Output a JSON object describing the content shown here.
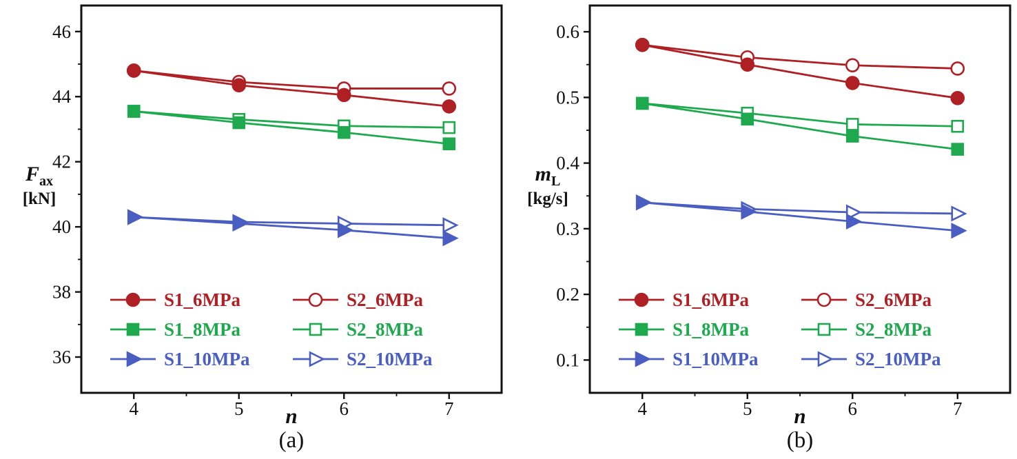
{
  "figure": {
    "background": "#ffffff",
    "axis_color": "#111111",
    "caption_a": "(a)",
    "caption_b": "(b)"
  },
  "chart_data": [
    {
      "type": "line",
      "caption": "(a)",
      "xlabel": "n",
      "ylabel": "F_ax [kN]",
      "ylabel_main": "F",
      "ylabel_sub": "ax",
      "ylabel_unit": "[kN]",
      "x": [
        4,
        5,
        6,
        7
      ],
      "xticks": [
        4,
        5,
        6,
        7
      ],
      "xtick_labels": [
        "4",
        "5",
        "6",
        "7"
      ],
      "yticks": [
        36,
        38,
        40,
        42,
        44,
        46
      ],
      "ytick_labels": [
        "36",
        "38",
        "40",
        "42",
        "44",
        "46"
      ],
      "xlim": [
        3.5,
        7.5
      ],
      "ylim": [
        34.9,
        46.8
      ],
      "grid": false,
      "legend_position": "inside-bottom-left",
      "series": [
        {
          "name": "S1_6MPa",
          "color": "#ae2024",
          "marker": "circle",
          "fill": "filled",
          "values": [
            44.8,
            44.35,
            44.05,
            43.7
          ]
        },
        {
          "name": "S2_6MPa",
          "color": "#ae2024",
          "marker": "circle",
          "fill": "open",
          "values": [
            44.8,
            44.45,
            44.25,
            44.25
          ]
        },
        {
          "name": "S1_8MPa",
          "color": "#1ea94e",
          "marker": "square",
          "fill": "filled",
          "values": [
            43.55,
            43.2,
            42.9,
            42.55
          ]
        },
        {
          "name": "S2_8MPa",
          "color": "#1ea94e",
          "marker": "square",
          "fill": "open",
          "values": [
            43.55,
            43.3,
            43.1,
            43.05
          ]
        },
        {
          "name": "S1_10MPa",
          "color": "#4a5dc0",
          "marker": "triangle-right",
          "fill": "filled",
          "values": [
            40.3,
            40.1,
            39.9,
            39.65
          ]
        },
        {
          "name": "S2_10MPa",
          "color": "#4a5dc0",
          "marker": "triangle-right",
          "fill": "open",
          "values": [
            40.3,
            40.15,
            40.1,
            40.05
          ]
        }
      ]
    },
    {
      "type": "line",
      "caption": "(b)",
      "xlabel": "n",
      "ylabel": "m_L [kg/s]",
      "ylabel_main": "m",
      "ylabel_sub": "L",
      "ylabel_unit": "[kg/s]",
      "x": [
        4,
        5,
        6,
        7
      ],
      "xticks": [
        4,
        5,
        6,
        7
      ],
      "xtick_labels": [
        "4",
        "5",
        "6",
        "7"
      ],
      "yticks": [
        0.1,
        0.2,
        0.3,
        0.4,
        0.5,
        0.6
      ],
      "ytick_labels": [
        "0.1",
        "0.2",
        "0.3",
        "0.4",
        "0.5",
        "0.6"
      ],
      "xlim": [
        3.5,
        7.5
      ],
      "ylim": [
        0.05,
        0.64
      ],
      "grid": false,
      "legend_position": "inside-bottom-left",
      "series": [
        {
          "name": "S1_6MPa",
          "color": "#ae2024",
          "marker": "circle",
          "fill": "filled",
          "values": [
            0.58,
            0.55,
            0.522,
            0.499
          ]
        },
        {
          "name": "S2_6MPa",
          "color": "#ae2024",
          "marker": "circle",
          "fill": "open",
          "values": [
            0.58,
            0.561,
            0.549,
            0.544
          ]
        },
        {
          "name": "S1_8MPa",
          "color": "#1ea94e",
          "marker": "square",
          "fill": "filled",
          "values": [
            0.491,
            0.467,
            0.441,
            0.421
          ]
        },
        {
          "name": "S2_8MPa",
          "color": "#1ea94e",
          "marker": "square",
          "fill": "open",
          "values": [
            0.491,
            0.476,
            0.459,
            0.456
          ]
        },
        {
          "name": "S1_10MPa",
          "color": "#4a5dc0",
          "marker": "triangle-right",
          "fill": "filled",
          "values": [
            0.34,
            0.326,
            0.311,
            0.297
          ]
        },
        {
          "name": "S2_10MPa",
          "color": "#4a5dc0",
          "marker": "triangle-right",
          "fill": "open",
          "values": [
            0.34,
            0.33,
            0.325,
            0.323
          ]
        }
      ]
    }
  ]
}
